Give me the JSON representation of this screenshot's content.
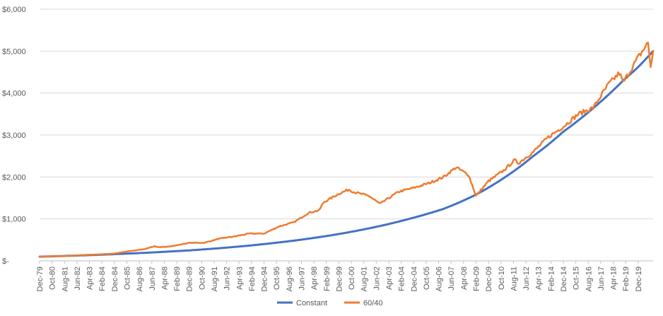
{
  "chart_data": {
    "type": "line",
    "title": "",
    "xlabel": "",
    "ylabel": "",
    "ylim": [
      0,
      6000
    ],
    "grid": "horizontal",
    "legend_position": "bottom",
    "yticks": [
      {
        "value": 0,
        "label": "$-"
      },
      {
        "value": 1000,
        "label": "$1,000"
      },
      {
        "value": 2000,
        "label": "$2,000"
      },
      {
        "value": 3000,
        "label": "$3,000"
      },
      {
        "value": 4000,
        "label": "$4,000"
      },
      {
        "value": 5000,
        "label": "$5,000"
      },
      {
        "value": 6000,
        "label": "$6,000"
      }
    ],
    "x_start": "Dec-79",
    "x_end": "Dec-20",
    "xticks": [
      "Dec-79",
      "Oct-80",
      "Aug-81",
      "Jun-82",
      "Apr-83",
      "Feb-84",
      "Dec-84",
      "Oct-85",
      "Aug-86",
      "Jun-87",
      "Apr-88",
      "Feb-89",
      "Dec-89",
      "Oct-90",
      "Aug-91",
      "Jun-92",
      "Apr-93",
      "Feb-94",
      "Dec-94",
      "Oct-95",
      "Aug-96",
      "Jun-97",
      "Apr-98",
      "Feb-99",
      "Dec-99",
      "Oct-00",
      "Aug-01",
      "Jun-02",
      "Apr-03",
      "Feb-04",
      "Dec-04",
      "Oct-05",
      "Aug-06",
      "Jun-07",
      "Apr-08",
      "Feb-09",
      "Dec-09",
      "Oct-10",
      "Aug-11",
      "Jun-12",
      "Apr-13",
      "Feb-14",
      "Dec-14",
      "Oct-15",
      "Aug-16",
      "Jun-17",
      "Apr-18",
      "Feb-19",
      "Dec-19"
    ],
    "series": [
      {
        "name": "Constant",
        "color": "#4472C4",
        "points": [
          [
            "Dec-79",
            100
          ],
          [
            "Dec-84",
            160
          ],
          [
            "Dec-89",
            250
          ],
          [
            "Dec-94",
            400
          ],
          [
            "Dec-99",
            640
          ],
          [
            "Dec-04",
            1030
          ],
          [
            "Dec-06",
            1240
          ],
          [
            "Dec-08",
            1550
          ],
          [
            "Dec-10",
            1970
          ],
          [
            "Dec-12",
            2500
          ],
          [
            "Dec-14",
            3080
          ],
          [
            "Dec-16",
            3640
          ],
          [
            "Dec-18",
            4300
          ],
          [
            "Dec-19",
            4620
          ],
          [
            "Dec-20",
            5000
          ]
        ]
      },
      {
        "name": "60/40",
        "color": "#ED7D31",
        "points": [
          [
            "Dec-79",
            100
          ],
          [
            "Dec-80",
            110
          ],
          [
            "Dec-81",
            115
          ],
          [
            "Dec-82",
            140
          ],
          [
            "Dec-83",
            155
          ],
          [
            "Dec-84",
            175
          ],
          [
            "Dec-85",
            230
          ],
          [
            "Dec-86",
            280
          ],
          [
            "Aug-87",
            350
          ],
          [
            "Dec-87",
            320
          ],
          [
            "Dec-88",
            360
          ],
          [
            "Dec-89",
            430
          ],
          [
            "Dec-90",
            430
          ],
          [
            "Dec-91",
            530
          ],
          [
            "Dec-92",
            580
          ],
          [
            "Dec-93",
            650
          ],
          [
            "Dec-94",
            650
          ],
          [
            "Dec-95",
            820
          ],
          [
            "Dec-96",
            920
          ],
          [
            "Dec-97",
            1150
          ],
          [
            "Aug-98",
            1200
          ],
          [
            "Dec-98",
            1400
          ],
          [
            "Dec-99",
            1600
          ],
          [
            "Aug-00",
            1700
          ],
          [
            "Dec-00",
            1640
          ],
          [
            "Dec-01",
            1550
          ],
          [
            "Sep-02",
            1360
          ],
          [
            "Dec-02",
            1420
          ],
          [
            "Dec-03",
            1650
          ],
          [
            "Dec-04",
            1740
          ],
          [
            "Dec-05",
            1850
          ],
          [
            "Dec-06",
            2000
          ],
          [
            "Oct-07",
            2230
          ],
          [
            "Aug-08",
            2050
          ],
          [
            "Feb-09",
            1550
          ],
          [
            "Dec-09",
            1900
          ],
          [
            "Dec-10",
            2150
          ],
          [
            "Sep-11",
            2400
          ],
          [
            "Dec-11",
            2330
          ],
          [
            "Dec-12",
            2600
          ],
          [
            "Dec-13",
            2950
          ],
          [
            "Dec-14",
            3200
          ],
          [
            "Dec-15",
            3500
          ],
          [
            "Dec-16",
            3650
          ],
          [
            "Dec-17",
            4200
          ],
          [
            "Sep-18",
            4480
          ],
          [
            "Dec-18",
            4250
          ],
          [
            "Dec-19",
            4850
          ],
          [
            "Aug-20",
            5200
          ],
          [
            "Oct-20",
            4620
          ],
          [
            "Dec-20",
            5000
          ]
        ]
      }
    ]
  }
}
